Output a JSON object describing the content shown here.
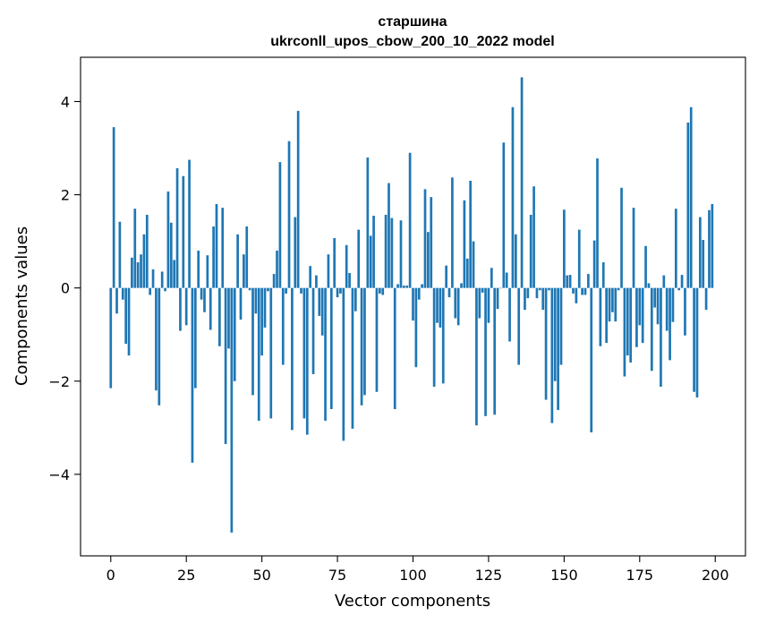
{
  "chart_data": {
    "type": "bar",
    "title": "старшина",
    "subtitle": "ukrconll_upos_cbow_200_10_2022 model",
    "xlabel": "Vector components",
    "ylabel": "Components values",
    "xlim": [
      -10,
      210
    ],
    "ylim": [
      -5.75,
      4.95
    ],
    "xticks": [
      0,
      25,
      50,
      75,
      100,
      125,
      150,
      175,
      200
    ],
    "yticks": [
      -4,
      -2,
      0,
      2,
      4
    ],
    "grid": false,
    "bar_color": "#1f77b4",
    "x": [
      0,
      1,
      2,
      3,
      4,
      5,
      6,
      7,
      8,
      9,
      10,
      11,
      12,
      13,
      14,
      15,
      16,
      17,
      18,
      19,
      20,
      21,
      22,
      23,
      24,
      25,
      26,
      27,
      28,
      29,
      30,
      31,
      32,
      33,
      34,
      35,
      36,
      37,
      38,
      39,
      40,
      41,
      42,
      43,
      44,
      45,
      46,
      47,
      48,
      49,
      50,
      51,
      52,
      53,
      54,
      55,
      56,
      57,
      58,
      59,
      60,
      61,
      62,
      63,
      64,
      65,
      66,
      67,
      68,
      69,
      70,
      71,
      72,
      73,
      74,
      75,
      76,
      77,
      78,
      79,
      80,
      81,
      82,
      83,
      84,
      85,
      86,
      87,
      88,
      89,
      90,
      91,
      92,
      93,
      94,
      95,
      96,
      97,
      98,
      99,
      100,
      101,
      102,
      103,
      104,
      105,
      106,
      107,
      108,
      109,
      110,
      111,
      112,
      113,
      114,
      115,
      116,
      117,
      118,
      119,
      120,
      121,
      122,
      123,
      124,
      125,
      126,
      127,
      128,
      129,
      130,
      131,
      132,
      133,
      134,
      135,
      136,
      137,
      138,
      139,
      140,
      141,
      142,
      143,
      144,
      145,
      146,
      147,
      148,
      149,
      150,
      151,
      152,
      153,
      154,
      155,
      156,
      157,
      158,
      159,
      160,
      161,
      162,
      163,
      164,
      165,
      166,
      167,
      168,
      169,
      170,
      171,
      172,
      173,
      174,
      175,
      176,
      177,
      178,
      179,
      180,
      181,
      182,
      183,
      184,
      185,
      186,
      187,
      188,
      189,
      190,
      191,
      192,
      193,
      194,
      195,
      196,
      197,
      198,
      199
    ],
    "values": [
      -2.15,
      3.45,
      -0.55,
      1.42,
      -0.25,
      -1.2,
      -1.45,
      0.65,
      1.7,
      0.55,
      0.72,
      1.15,
      1.57,
      -0.15,
      0.4,
      -2.2,
      -2.52,
      0.35,
      -0.07,
      2.07,
      1.4,
      0.6,
      2.57,
      -0.92,
      2.4,
      -0.8,
      2.75,
      -3.75,
      -2.15,
      0.8,
      -0.25,
      -0.52,
      0.7,
      -0.9,
      1.32,
      1.8,
      -1.25,
      1.72,
      -3.35,
      -1.3,
      -5.25,
      -2.0,
      1.15,
      -0.68,
      0.72,
      1.32,
      -0.05,
      -2.3,
      -0.55,
      -2.85,
      -1.45,
      -0.85,
      -0.07,
      -2.8,
      0.3,
      0.8,
      2.7,
      -1.65,
      -0.12,
      3.15,
      -3.05,
      1.52,
      3.8,
      -0.12,
      -2.8,
      -3.15,
      0.47,
      -1.85,
      0.27,
      -0.6,
      -1.02,
      -2.85,
      0.72,
      -2.6,
      1.07,
      -0.2,
      -0.12,
      -3.28,
      0.92,
      0.32,
      -3.02,
      -0.5,
      1.25,
      -2.52,
      -2.3,
      2.8,
      1.12,
      1.55,
      -2.23,
      -0.12,
      -0.15,
      1.57,
      2.25,
      1.5,
      -2.6,
      0.08,
      1.45,
      0.05,
      0.05,
      2.9,
      -0.7,
      -1.7,
      -0.25,
      0.08,
      2.12,
      1.2,
      1.95,
      -2.12,
      -0.75,
      -0.85,
      -2.05,
      0.48,
      -0.2,
      2.37,
      -0.65,
      -0.8,
      0.1,
      1.88,
      0.63,
      2.3,
      1.0,
      -2.95,
      -0.65,
      -0.1,
      -2.75,
      -0.75,
      0.43,
      -2.72,
      -0.45,
      0.0,
      3.12,
      0.33,
      -1.15,
      3.88,
      1.15,
      -1.65,
      4.52,
      -0.47,
      -0.22,
      1.57,
      2.18,
      -0.22,
      -0.05,
      -0.47,
      -2.4,
      -0.05,
      -2.9,
      -2.0,
      -2.62,
      -1.65,
      1.68,
      0.27,
      0.28,
      -0.12,
      -0.33,
      1.25,
      -0.15,
      -0.15,
      0.3,
      -3.1,
      1.02,
      2.78,
      -1.25,
      0.55,
      -1.18,
      -0.72,
      -0.52,
      -0.72,
      -0.05,
      2.15,
      -1.9,
      -1.45,
      -1.6,
      1.72,
      -1.27,
      -0.8,
      -1.18,
      0.9,
      0.1,
      -1.78,
      -0.42,
      -0.78,
      -2.12,
      0.27,
      -0.92,
      -1.55,
      -0.73,
      1.7,
      -0.05,
      0.28,
      -1.02,
      3.55,
      3.88,
      -2.23,
      -2.35,
      1.52,
      1.03,
      -0.47,
      1.67,
      1.8
    ]
  }
}
